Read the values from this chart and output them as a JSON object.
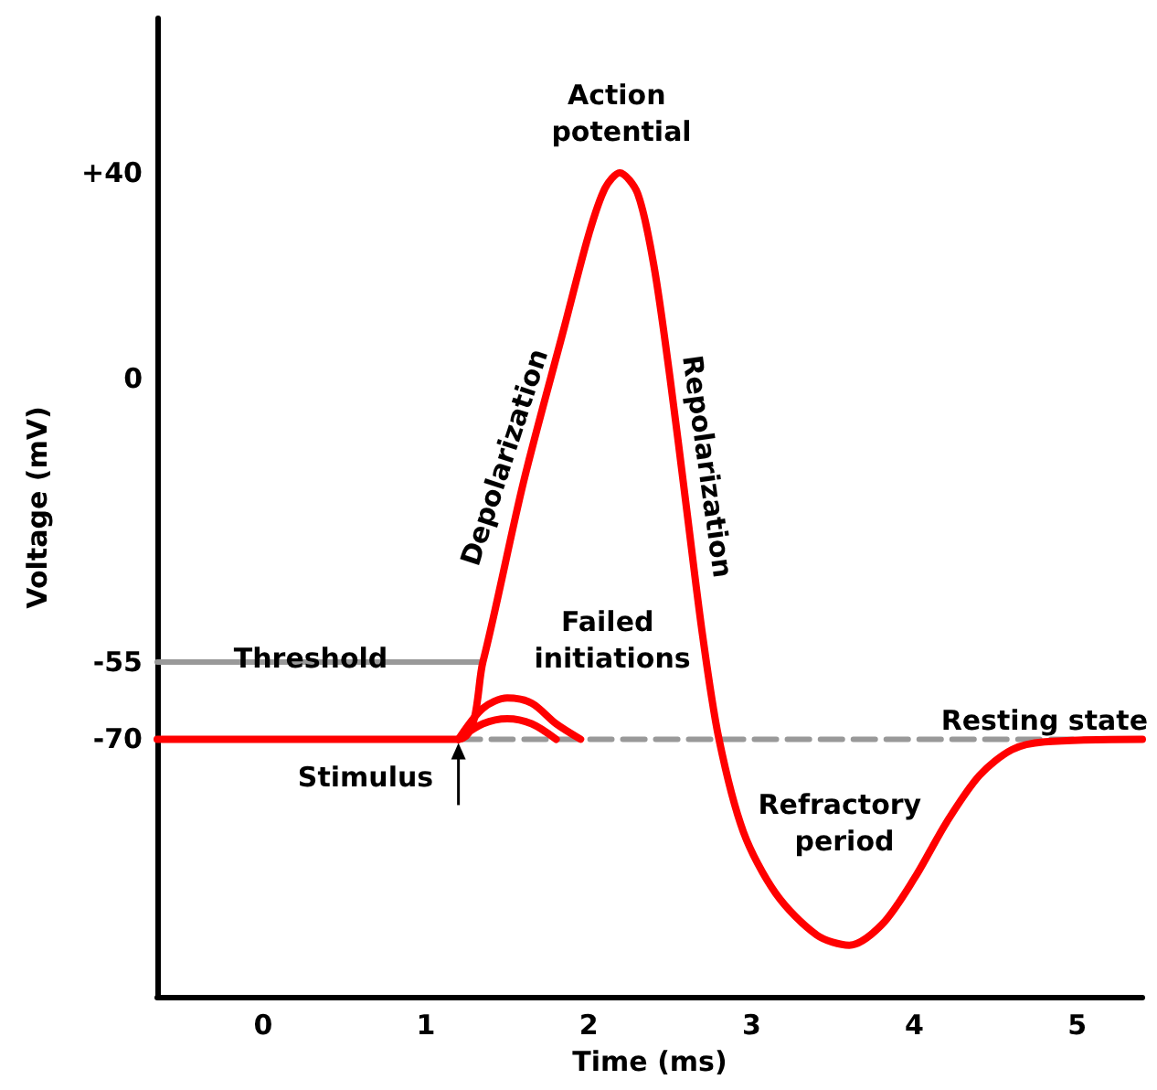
{
  "chart_data": {
    "type": "line",
    "xlabel": "Time (ms)",
    "ylabel": "Voltage (mV)",
    "xlim": [
      -0.65,
      5.4
    ],
    "xticks": [
      0,
      1,
      2,
      3,
      4,
      5
    ],
    "ylim": [
      -120,
      70
    ],
    "yticks": [
      {
        "value": 40,
        "label": "+40"
      },
      0,
      -55,
      -70
    ],
    "grid": false,
    "marker": "none",
    "line_style": "solid",
    "series": [
      {
        "name": "Threshold",
        "color": "#999999",
        "x": [
          -0.65,
          1.35
        ],
        "values": [
          -55,
          -55
        ]
      },
      {
        "name": "Resting state",
        "color": "#999999",
        "line_style": "dashed",
        "x": [
          1.2,
          5.4
        ],
        "values": [
          -70,
          -70
        ]
      },
      {
        "color": "#ff0000",
        "x": [
          1.2,
          1.35,
          1.5,
          1.65,
          1.8,
          1.95
        ],
        "values": [
          -70,
          -64,
          -62,
          -63,
          -67,
          -70
        ]
      },
      {
        "color": "#ff0000",
        "x": [
          1.2,
          1.35,
          1.5,
          1.65,
          1.8
        ],
        "values": [
          -70,
          -67,
          -66,
          -67,
          -70
        ]
      },
      {
        "color": "#ff0000",
        "x": [
          -0.65,
          1.2,
          1.35,
          1.6,
          1.85,
          2.0,
          2.1,
          2.19,
          2.3,
          2.4,
          2.5,
          2.6,
          2.7,
          2.8,
          2.95,
          3.15,
          3.4,
          3.6,
          3.8,
          4.0,
          4.2,
          4.4,
          4.6,
          4.8,
          5.4
        ],
        "values": [
          -70,
          -70,
          -55,
          -20,
          10,
          28,
          37,
          40,
          36,
          22,
          0,
          -25,
          -50,
          -70,
          -88,
          -100,
          -108,
          -110,
          -106,
          -97,
          -86,
          -77,
          -72,
          -70.5,
          -70
        ]
      }
    ],
    "annotations": [
      "Action potential",
      "Depolarization",
      "Repolarization",
      "Failed initiations",
      "Stimulus",
      "Refractory period"
    ]
  }
}
